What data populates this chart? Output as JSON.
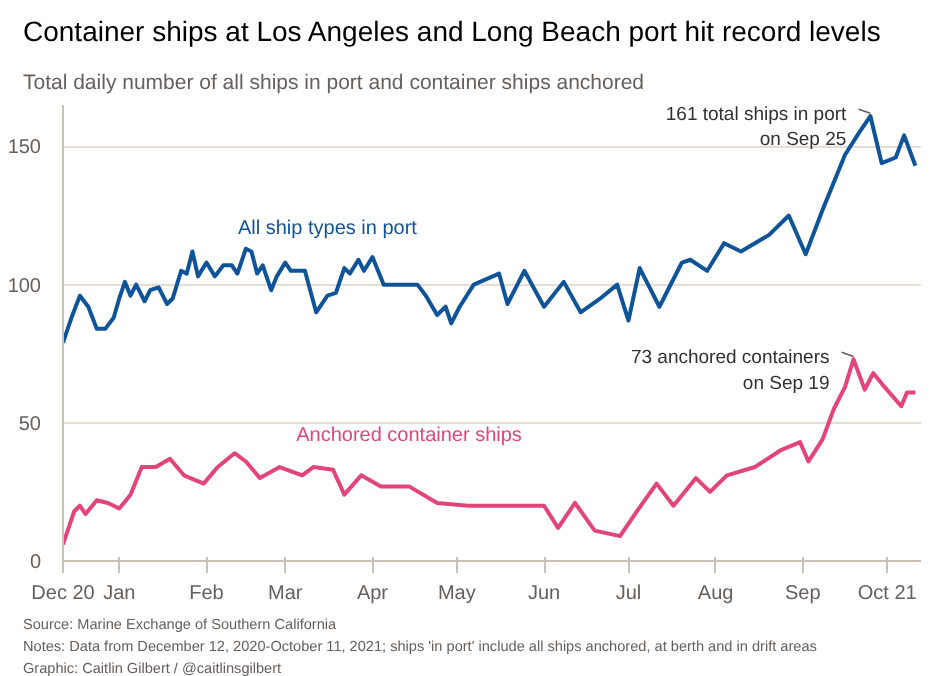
{
  "chart_data": {
    "type": "line",
    "title": "Container ships at Los Angeles and Long Beach port hit record levels",
    "subtitle": "Total daily number of all ships in port and container ships anchored",
    "xlim": [
      "2020-12-12",
      "2021-10-13"
    ],
    "xticks": [
      {
        "value": "2020-12-12",
        "label": "Dec 20"
      },
      {
        "value": "2021-01-01",
        "label": "Jan"
      },
      {
        "value": "2021-02-01",
        "label": "Feb"
      },
      {
        "value": "2021-03-01",
        "label": "Mar"
      },
      {
        "value": "2021-04-01",
        "label": "Apr"
      },
      {
        "value": "2021-05-01",
        "label": "May"
      },
      {
        "value": "2021-06-01",
        "label": "Jun"
      },
      {
        "value": "2021-07-01",
        "label": "Jul"
      },
      {
        "value": "2021-08-01",
        "label": "Aug"
      },
      {
        "value": "2021-09-01",
        "label": "Sep"
      },
      {
        "value": "2021-10-01",
        "label": "Oct 21"
      }
    ],
    "ylim": [
      0,
      165
    ],
    "yticks": [
      0,
      50,
      100,
      150
    ],
    "grid": "y",
    "legend": false,
    "marker": "none",
    "line_style": "solid",
    "series": [
      {
        "name": "All ship types in port",
        "color": "#0f5499",
        "x": [
          "2020-12-12",
          "2020-12-15",
          "2020-12-18",
          "2020-12-21",
          "2020-12-24",
          "2020-12-27",
          "2020-12-30",
          "2021-01-01",
          "2021-01-03",
          "2021-01-05",
          "2021-01-07",
          "2021-01-10",
          "2021-01-12",
          "2021-01-15",
          "2021-01-18",
          "2021-01-20",
          "2021-01-23",
          "2021-01-25",
          "2021-01-27",
          "2021-01-29",
          "2021-02-01",
          "2021-02-04",
          "2021-02-07",
          "2021-02-10",
          "2021-02-12",
          "2021-02-15",
          "2021-02-17",
          "2021-02-19",
          "2021-02-21",
          "2021-02-24",
          "2021-02-26",
          "2021-03-01",
          "2021-03-03",
          "2021-03-08",
          "2021-03-12",
          "2021-03-16",
          "2021-03-19",
          "2021-03-22",
          "2021-03-24",
          "2021-03-27",
          "2021-03-29",
          "2021-04-01",
          "2021-04-05",
          "2021-04-10",
          "2021-04-17",
          "2021-04-20",
          "2021-04-24",
          "2021-04-27",
          "2021-04-29",
          "2021-05-02",
          "2021-05-07",
          "2021-05-16",
          "2021-05-19",
          "2021-05-25",
          "2021-06-01",
          "2021-06-08",
          "2021-06-14",
          "2021-06-21",
          "2021-06-27",
          "2021-07-01",
          "2021-07-05",
          "2021-07-12",
          "2021-07-20",
          "2021-07-23",
          "2021-07-29",
          "2021-08-04",
          "2021-08-10",
          "2021-08-20",
          "2021-08-27",
          "2021-09-02",
          "2021-09-08",
          "2021-09-16",
          "2021-09-21",
          "2021-09-25",
          "2021-09-29",
          "2021-10-04",
          "2021-10-07",
          "2021-10-11"
        ],
        "values": [
          79,
          88,
          96,
          92,
          84,
          84,
          88,
          95,
          101,
          96,
          100,
          94,
          98,
          99,
          93,
          95,
          105,
          104,
          112,
          103,
          108,
          103,
          107,
          107,
          104,
          113,
          112,
          104,
          107,
          98,
          103,
          108,
          105,
          105,
          90,
          96,
          97,
          106,
          104,
          109,
          105,
          110,
          100,
          100,
          100,
          96,
          89,
          92,
          86,
          92,
          100,
          104,
          93,
          105,
          92,
          101,
          90,
          95,
          100,
          87,
          106,
          92,
          108,
          109,
          105,
          115,
          112,
          118,
          125,
          111,
          127,
          147,
          155,
          161,
          144,
          146,
          154,
          143
        ]
      },
      {
        "name": "Anchored container ships",
        "color": "#e3457a",
        "x": [
          "2020-12-12",
          "2020-12-16",
          "2020-12-18",
          "2020-12-20",
          "2020-12-24",
          "2020-12-28",
          "2021-01-01",
          "2021-01-05",
          "2021-01-09",
          "2021-01-14",
          "2021-01-19",
          "2021-01-24",
          "2021-01-31",
          "2021-02-05",
          "2021-02-11",
          "2021-02-15",
          "2021-02-20",
          "2021-02-27",
          "2021-03-07",
          "2021-03-11",
          "2021-03-18",
          "2021-03-22",
          "2021-03-28",
          "2021-04-04",
          "2021-04-14",
          "2021-04-24",
          "2021-05-05",
          "2021-05-16",
          "2021-05-25",
          "2021-06-01",
          "2021-06-06",
          "2021-06-12",
          "2021-06-19",
          "2021-06-28",
          "2021-07-04",
          "2021-07-11",
          "2021-07-17",
          "2021-07-25",
          "2021-07-30",
          "2021-08-05",
          "2021-08-15",
          "2021-08-24",
          "2021-08-31",
          "2021-09-03",
          "2021-09-08",
          "2021-09-12",
          "2021-09-16",
          "2021-09-19",
          "2021-09-23",
          "2021-09-26",
          "2021-09-30",
          "2021-10-06",
          "2021-10-08",
          "2021-10-11"
        ],
        "values": [
          6,
          18,
          20,
          17,
          22,
          21,
          19,
          24,
          34,
          34,
          37,
          31,
          28,
          34,
          39,
          36,
          30,
          34,
          31,
          34,
          33,
          24,
          31,
          27,
          27,
          21,
          20,
          20,
          20,
          20,
          12,
          21,
          11,
          9,
          18,
          28,
          20,
          30,
          25,
          31,
          34,
          40,
          43,
          36,
          44,
          55,
          63,
          73,
          62,
          68,
          63,
          56,
          61,
          61
        ]
      }
    ],
    "annotations": [
      {
        "text": "161 total ships in port\non Sep 25",
        "x": "2021-09-25",
        "y": 161
      },
      {
        "text": "73 anchored containers\non Sep 19",
        "x": "2021-09-19",
        "y": 73
      },
      "Source: Marine Exchange of Southern California",
      "Notes: Data from December 12, 2020-October 11, 2021; ships 'in port' include all ships anchored, at berth and in drift areas",
      "Graphic: Caitlin Gilbert / @caitlinsgilbert"
    ]
  }
}
